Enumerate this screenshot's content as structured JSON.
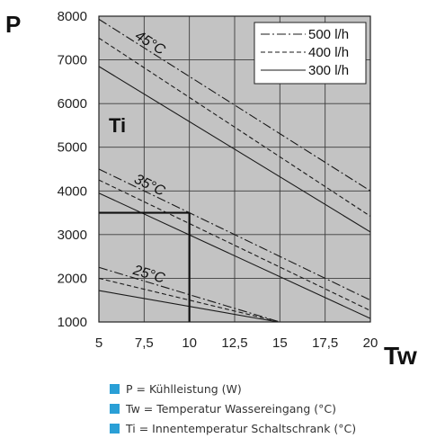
{
  "chart_data": {
    "type": "line",
    "y_letter": "P",
    "x_letter": "Tw",
    "inner_label": "Ti",
    "xlim": [
      5,
      20
    ],
    "ylim": [
      1000,
      8000
    ],
    "x_ticks": [
      "5",
      "7,5",
      "10",
      "12,5",
      "15",
      "17,5",
      "20"
    ],
    "x_tick_values": [
      5,
      7.5,
      10,
      12.5,
      15,
      17.5,
      20
    ],
    "y_ticks": [
      "1000",
      "2000",
      "3000",
      "4000",
      "5000",
      "6000",
      "7000",
      "8000"
    ],
    "y_tick_values": [
      1000,
      2000,
      3000,
      4000,
      5000,
      6000,
      7000,
      8000
    ],
    "grid": true,
    "legend_position": "top-right",
    "legend": [
      {
        "label": "500 l/h",
        "style": "dash-dot"
      },
      {
        "label": "400 l/h",
        "style": "dashed"
      },
      {
        "label": "300 l/h",
        "style": "solid"
      }
    ],
    "groups": [
      {
        "label": "45°C",
        "series": [
          {
            "flow": "500 l/h",
            "x": [
              5,
              20
            ],
            "y": [
              7930,
              4000
            ]
          },
          {
            "flow": "400 l/h",
            "x": [
              5,
              20
            ],
            "y": [
              7500,
              3420
            ]
          },
          {
            "flow": "300 l/h",
            "x": [
              5,
              20
            ],
            "y": [
              6850,
              3060
            ]
          }
        ]
      },
      {
        "label": "35°C",
        "series": [
          {
            "flow": "500 l/h",
            "x": [
              5,
              20
            ],
            "y": [
              4500,
              1500
            ]
          },
          {
            "flow": "400 l/h",
            "x": [
              5,
              20
            ],
            "y": [
              4250,
              1260
            ]
          },
          {
            "flow": "300 l/h",
            "x": [
              5,
              20
            ],
            "y": [
              3950,
              1080
            ]
          }
        ]
      },
      {
        "label": "25°C",
        "series": [
          {
            "flow": "500 l/h",
            "x": [
              5,
              15
            ],
            "y": [
              2250,
              1000
            ]
          },
          {
            "flow": "400 l/h",
            "x": [
              5,
              15
            ],
            "y": [
              2000,
              1000
            ]
          },
          {
            "flow": "300 l/h",
            "x": [
              5,
              14.9
            ],
            "y": [
              1720,
              1000
            ]
          }
        ]
      }
    ],
    "reference_lines": [
      {
        "x": [
          5,
          10
        ],
        "y": [
          3500,
          3500
        ]
      },
      {
        "x": [
          10,
          10
        ],
        "y": [
          3500,
          1000
        ]
      }
    ]
  },
  "notes": [
    "P = Kühlleistung (W)",
    "Tw = Temperatur Wassereingang (°C)",
    "Ti =  Innentemperatur Schaltschrank (°C)"
  ],
  "colors": {
    "plot_background": "#c3c3c3",
    "grid": "#3c3c3c",
    "lines": "#1a1a1a",
    "note_bullet": "#2a9fd6"
  }
}
